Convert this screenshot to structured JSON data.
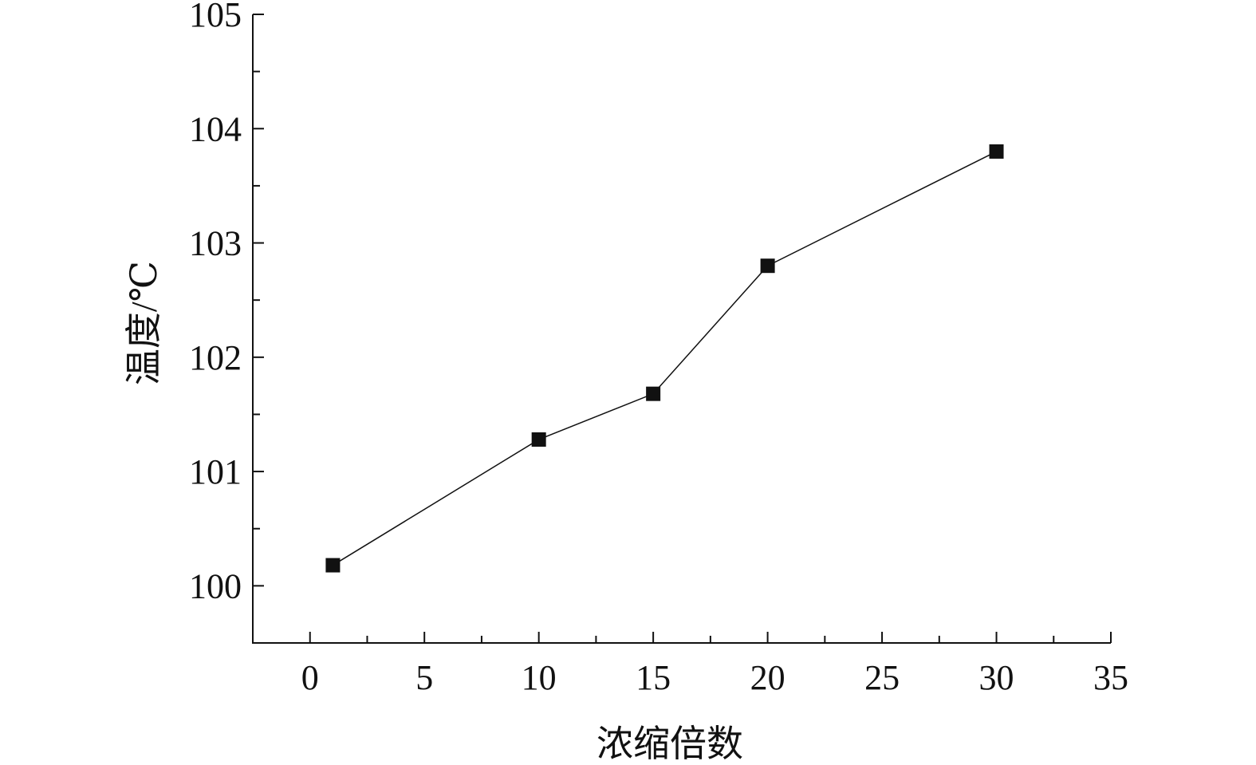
{
  "chart_data": {
    "type": "line",
    "x_label": "浓缩倍数",
    "y_label": "温度/℃",
    "x": [
      1,
      10,
      15,
      20,
      30
    ],
    "series": [
      {
        "color": "#111111",
        "values": [
          100.18,
          101.28,
          101.68,
          102.8,
          103.8
        ]
      }
    ],
    "xlim": [
      -2.5,
      35
    ],
    "xticks": [
      0,
      5,
      10,
      15,
      20,
      25,
      30,
      35
    ],
    "xminorticks": [
      2.5,
      7.5,
      12.5,
      17.5,
      22.5,
      27.5,
      32.5
    ],
    "ylim": [
      99.5,
      105
    ],
    "yticks": [
      100,
      101,
      102,
      103,
      104,
      105
    ],
    "yminorticks": [
      100.5,
      101.5,
      102.5,
      103.5,
      104.5
    ],
    "grid": false,
    "marker": "square"
  }
}
